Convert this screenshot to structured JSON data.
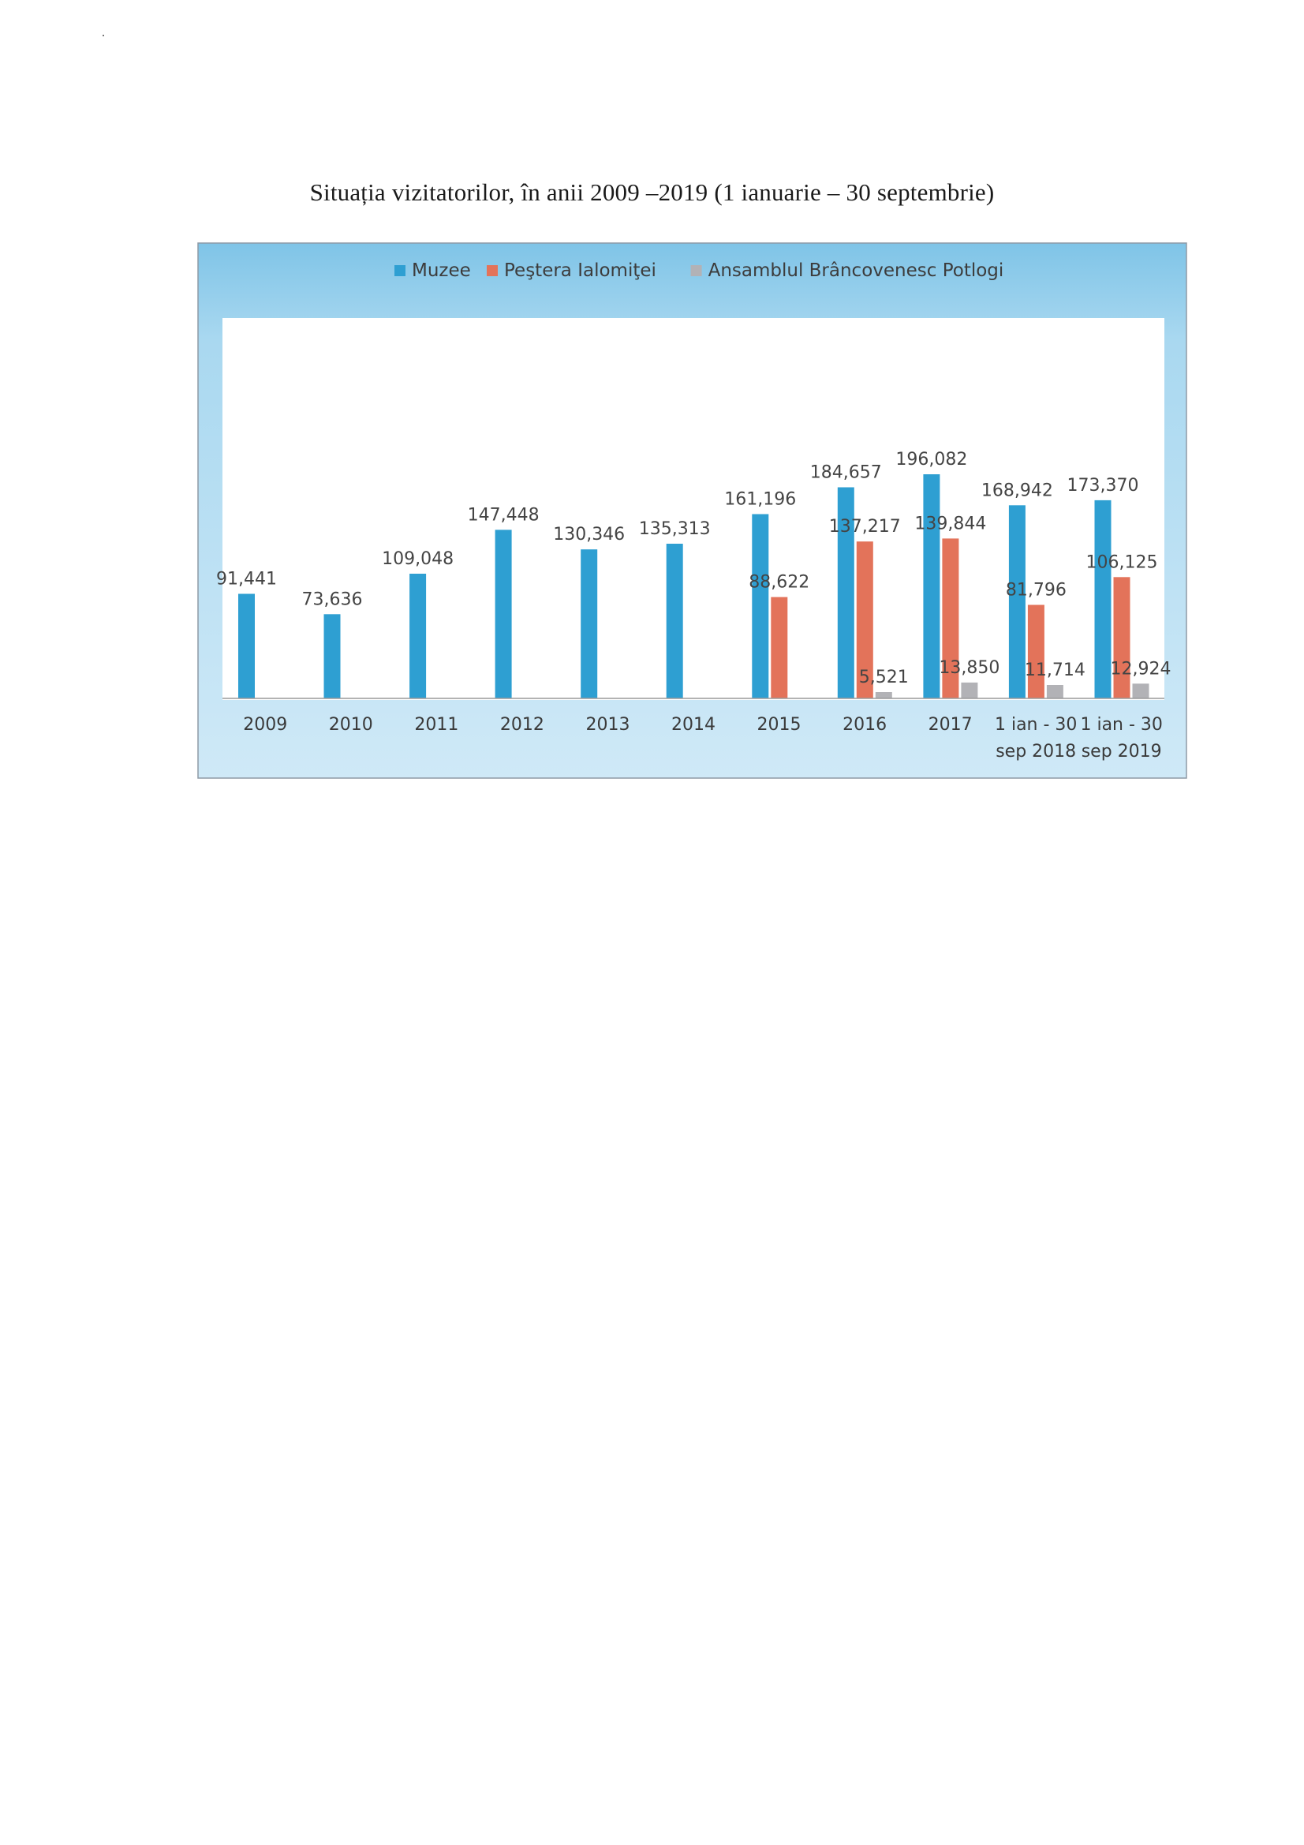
{
  "page": {
    "title": "Situația vizitatorilor, în anii 2009 –2019 (1 ianuarie – 30 septembrie)"
  },
  "chart_data": {
    "type": "bar",
    "title": "",
    "xlabel": "",
    "ylabel": "",
    "ylim": [
      0,
      210000
    ],
    "grid": false,
    "legend_position": "top",
    "categories": [
      [
        "2009"
      ],
      [
        "2010"
      ],
      [
        "2011"
      ],
      [
        "2012"
      ],
      [
        "2013"
      ],
      [
        "2014"
      ],
      [
        "2015"
      ],
      [
        "2016"
      ],
      [
        "2017"
      ],
      [
        "1 ian - 30",
        "sep 2018"
      ],
      [
        "1 ian - 30",
        "sep 2019"
      ]
    ],
    "series": [
      {
        "name": "Muzee",
        "color": "#2e9fd2",
        "values": [
          91441,
          73636,
          109048,
          147448,
          130346,
          135313,
          161196,
          184657,
          196082,
          168942,
          173370
        ],
        "labels": [
          "91,441",
          "73,636",
          "109,048",
          "147,448",
          "130,346",
          "135,313",
          "161,196",
          "184,657",
          "196,082",
          "168,942",
          "173,370"
        ]
      },
      {
        "name": "Peştera Ialomiţei",
        "color": "#e3735a",
        "values": [
          null,
          null,
          null,
          null,
          null,
          null,
          88622,
          137217,
          139844,
          81796,
          106125
        ],
        "labels": [
          "",
          "",
          "",
          "",
          "",
          "",
          "88,622",
          "137,217",
          "139,844",
          "81,796",
          "106,125"
        ]
      },
      {
        "name": "Ansamblul Brâncovenesc Potlogi",
        "color": "#b2b2b6",
        "values": [
          null,
          null,
          null,
          null,
          null,
          null,
          null,
          5521,
          13850,
          11714,
          12924
        ],
        "labels": [
          "",
          "",
          "",
          "",
          "",
          "",
          "",
          "5,521",
          "13,850",
          "11,714",
          "12,924"
        ]
      }
    ]
  },
  "style": {
    "frame_gradient_top": "#7cc3e6",
    "frame_gradient_bottom": "#c7e6f6",
    "plot_background": "#ffffff",
    "axis_color": "#9a9a9a",
    "label_color": "#444444",
    "tick_label_color": "#3a3a3a"
  }
}
